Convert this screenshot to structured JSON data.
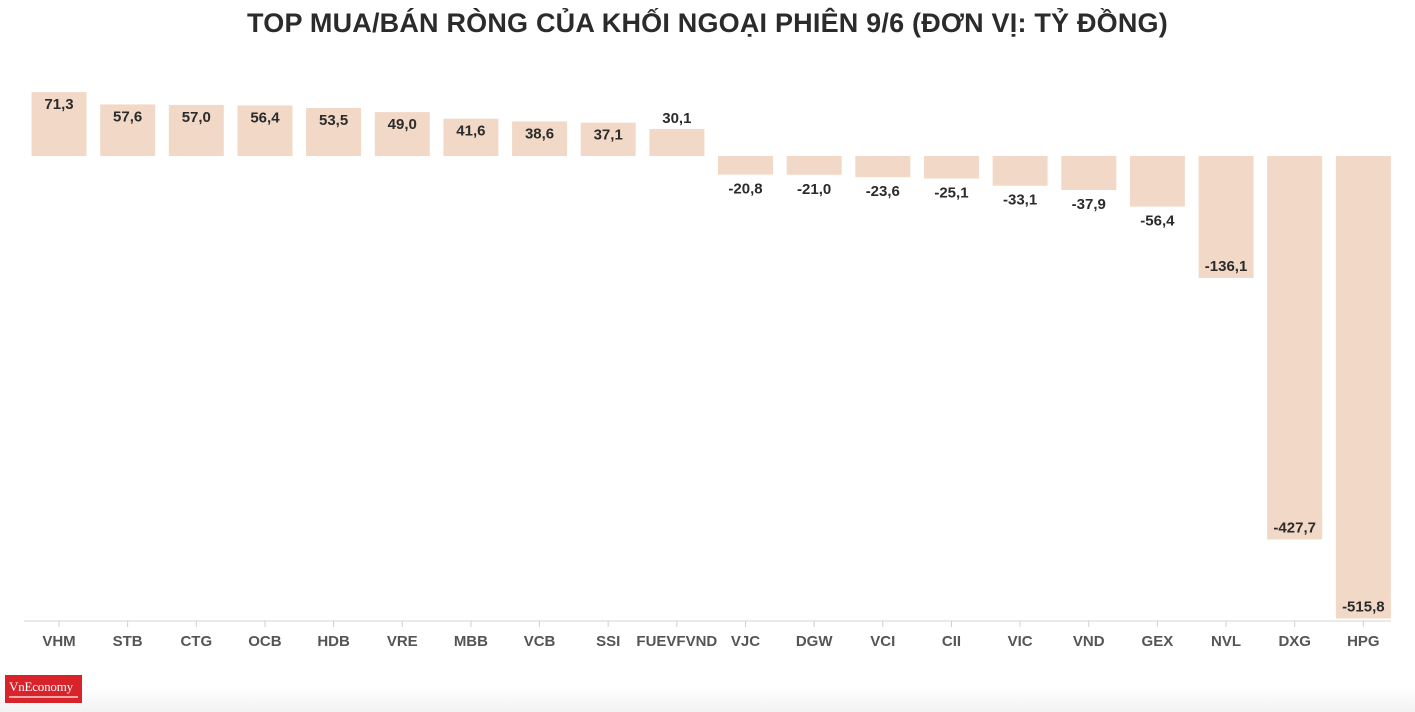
{
  "chart_data": {
    "type": "bar",
    "title": "TOP MUA/BÁN RÒNG CỦA KHỐI NGOẠI PHIÊN 9/6 (ĐƠN VỊ: TỶ ĐỒNG)",
    "categories": [
      "VHM",
      "STB",
      "CTG",
      "OCB",
      "HDB",
      "VRE",
      "MBB",
      "VCB",
      "SSI",
      "FUEVFVND",
      "VJC",
      "DGW",
      "VCI",
      "CII",
      "VIC",
      "VND",
      "GEX",
      "NVL",
      "DXG",
      "HPG"
    ],
    "values": [
      71.3,
      57.6,
      57.0,
      56.4,
      53.5,
      49.0,
      41.6,
      38.6,
      37.1,
      30.1,
      -20.8,
      -21.0,
      -23.6,
      -25.1,
      -33.1,
      -37.9,
      -56.4,
      -136.1,
      -427.7,
      -515.8
    ],
    "labels": [
      "71,3",
      "57,6",
      "57,0",
      "56,4",
      "53,5",
      "49,0",
      "41,6",
      "38,6",
      "37,1",
      "30,1",
      "-20,8",
      "-21,0",
      "-23,6",
      "-25,1",
      "-33,1",
      "-37,9",
      "-56,4",
      "-136,1",
      "-427,7",
      "-515,8"
    ],
    "bar_color": "#f2d9c7",
    "xlabel": "",
    "ylabel": "",
    "grid": false,
    "legend": "none"
  },
  "brand": {
    "logo_text": "VnEconomy",
    "logo_color": "#d8232a"
  }
}
